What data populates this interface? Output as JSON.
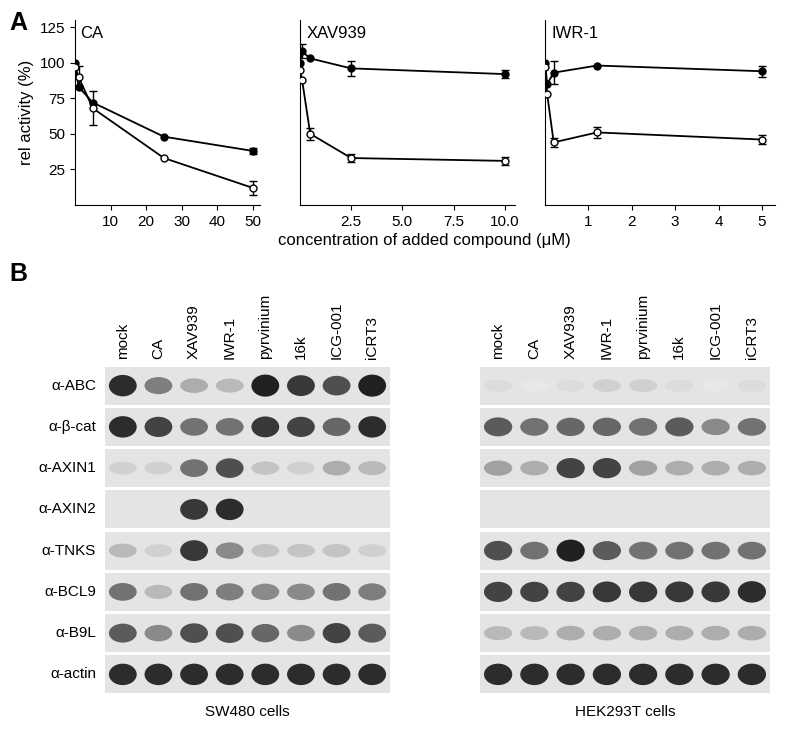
{
  "panel_labels": [
    "A",
    "B"
  ],
  "x_label": "concentration of added compound (μM)",
  "chart_data": [
    {
      "type": "line",
      "title": "CA",
      "y_label": "rel activity (%)",
      "xlim": [
        0,
        52
      ],
      "xticks": [
        10,
        20,
        30,
        40,
        50
      ],
      "ylim": [
        0,
        130
      ],
      "yticks": [
        25,
        50,
        75,
        100,
        125
      ],
      "series": [
        {
          "marker": "circle",
          "color": "#000000",
          "line_style": "solid",
          "x": [
            0,
            1,
            5,
            25,
            50
          ],
          "values": [
            100,
            83,
            72,
            48,
            38
          ],
          "errors": [
            null,
            null,
            null,
            null,
            2
          ]
        },
        {
          "marker": "open_circle",
          "color": "#000000",
          "line_style": "solid",
          "x": [
            0,
            1,
            5,
            25,
            50
          ],
          "values": [
            97,
            90,
            68,
            33,
            12
          ],
          "errors": [
            null,
            8,
            12,
            null,
            5
          ]
        }
      ]
    },
    {
      "type": "line",
      "title": "XAV939",
      "tick_labels": "x",
      "xlim": [
        0,
        10.5
      ],
      "xticks": [
        {
          "value": 2.5,
          "label": "2.5"
        },
        {
          "value": 5,
          "label": "5.0"
        },
        {
          "value": 7.5,
          "label": "7.5"
        },
        {
          "value": 10,
          "label": "10.0"
        }
      ],
      "ylim": [
        0,
        130
      ],
      "yticks": [
        25,
        50,
        75,
        100,
        125
      ],
      "series": [
        {
          "marker": "circle",
          "color": "#000000",
          "line_style": "solid",
          "x": [
            0,
            0.1,
            0.5,
            2.5,
            10
          ],
          "values": [
            100,
            108,
            103,
            96,
            92
          ],
          "errors": [
            null,
            5,
            null,
            5,
            3
          ]
        },
        {
          "marker": "open_circle",
          "color": "#000000",
          "line_style": "solid",
          "x": [
            0,
            0.1,
            0.5,
            2.5,
            10
          ],
          "values": [
            95,
            88,
            50,
            33,
            31
          ],
          "errors": [
            null,
            null,
            4,
            3,
            3
          ]
        }
      ]
    },
    {
      "type": "line",
      "title": "IWR-1",
      "tick_labels": "x",
      "xlim": [
        0,
        5.3
      ],
      "xticks": [
        1,
        2,
        3,
        4,
        5
      ],
      "ylim": [
        0,
        130
      ],
      "yticks": [
        25,
        50,
        75,
        100,
        125
      ],
      "series": [
        {
          "marker": "circle",
          "color": "#000000",
          "line_style": "solid",
          "x": [
            0,
            0.05,
            0.2,
            1.2,
            5
          ],
          "values": [
            100,
            85,
            93,
            98,
            94
          ],
          "errors": [
            null,
            null,
            8,
            null,
            4
          ]
        },
        {
          "marker": "open_circle",
          "color": "#000000",
          "line_style": "solid",
          "x": [
            0,
            0.05,
            0.2,
            1.2,
            5
          ],
          "values": [
            97,
            78,
            44,
            51,
            46
          ],
          "errors": [
            null,
            null,
            3,
            4,
            3
          ]
        }
      ]
    }
  ],
  "blots": {
    "lane_labels": [
      "mock",
      "CA",
      "XAV939",
      "IWR-1",
      "pyrvinium",
      "16k",
      "ICG-001",
      "iCRT3"
    ],
    "row_labels": [
      "α-ABC",
      "α-β-cat",
      "α-AXIN1",
      "α-AXIN2",
      "α-TNKS",
      "α-BCL9",
      "α-B9L",
      "α-actin"
    ],
    "panels": [
      {
        "cell_line": "SW480 cells",
        "intensity": [
          [
            0.9,
            0.55,
            0.35,
            0.3,
            0.95,
            0.85,
            0.75,
            0.95
          ],
          [
            0.9,
            0.8,
            0.6,
            0.6,
            0.85,
            0.8,
            0.65,
            0.9
          ],
          [
            0.2,
            0.2,
            0.6,
            0.75,
            0.25,
            0.2,
            0.35,
            0.3
          ],
          [
            0,
            0,
            0.85,
            0.9,
            0,
            0,
            0,
            0
          ],
          [
            0.3,
            0.2,
            0.85,
            0.5,
            0.25,
            0.25,
            0.25,
            0.2
          ],
          [
            0.6,
            0.3,
            0.6,
            0.55,
            0.5,
            0.5,
            0.6,
            0.55
          ],
          [
            0.7,
            0.5,
            0.75,
            0.75,
            0.65,
            0.5,
            0.8,
            0.7
          ],
          [
            0.9,
            0.9,
            0.9,
            0.9,
            0.9,
            0.9,
            0.9,
            0.9
          ]
        ]
      },
      {
        "cell_line": "HEK293T cells",
        "intensity": [
          [
            0.15,
            0.1,
            0.15,
            0.2,
            0.2,
            0.15,
            0.1,
            0.15
          ],
          [
            0.7,
            0.6,
            0.65,
            0.65,
            0.6,
            0.7,
            0.5,
            0.6
          ],
          [
            0.4,
            0.35,
            0.8,
            0.8,
            0.4,
            0.35,
            0.35,
            0.35
          ],
          [
            0,
            0,
            0,
            0,
            0,
            0,
            0,
            0
          ],
          [
            0.75,
            0.6,
            0.95,
            0.7,
            0.6,
            0.6,
            0.6,
            0.6
          ],
          [
            0.8,
            0.8,
            0.8,
            0.85,
            0.85,
            0.85,
            0.85,
            0.9
          ],
          [
            0.3,
            0.3,
            0.35,
            0.35,
            0.35,
            0.35,
            0.35,
            0.35
          ],
          [
            0.9,
            0.9,
            0.9,
            0.9,
            0.9,
            0.9,
            0.9,
            0.9
          ]
        ]
      }
    ]
  }
}
